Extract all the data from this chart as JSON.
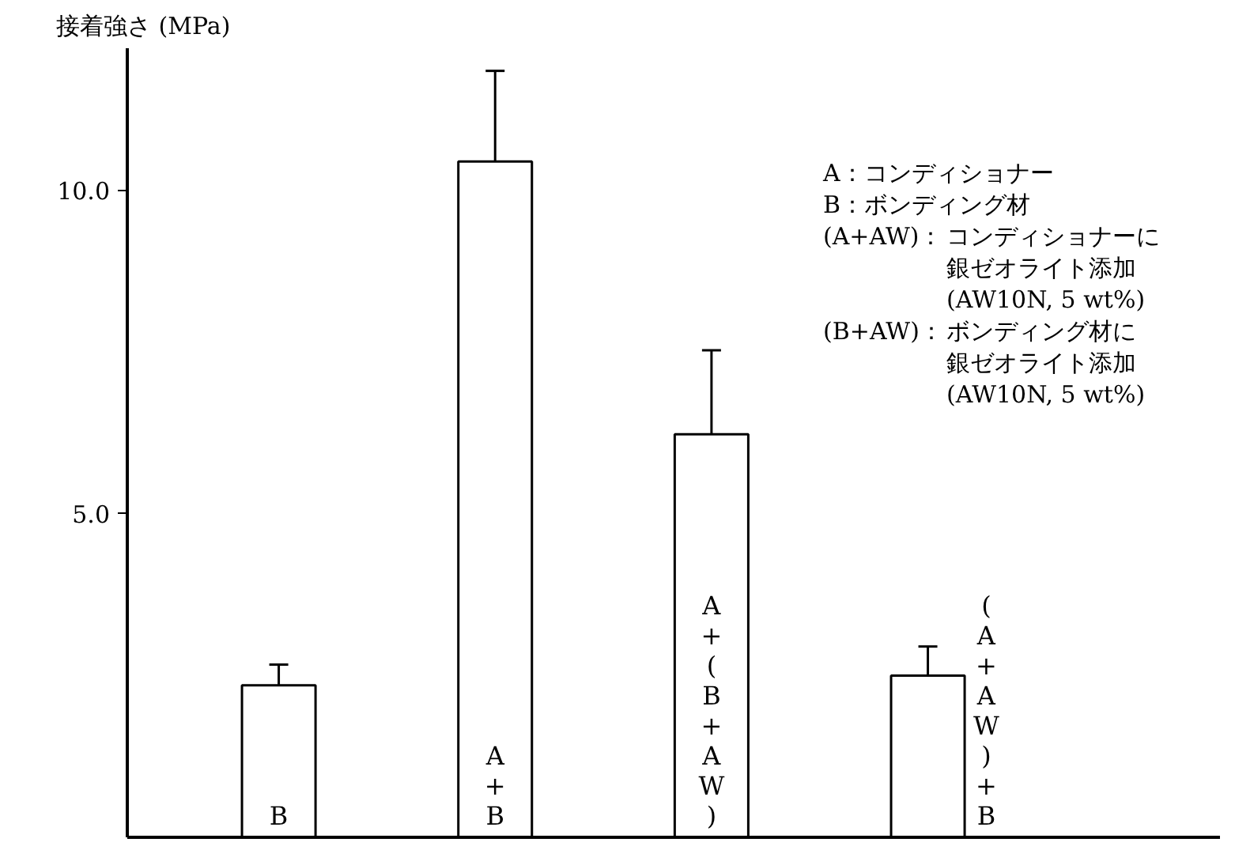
{
  "chart_data": {
    "type": "bar",
    "ylabel": "接着強さ (MPa)",
    "categories": [
      "B",
      "A+B",
      "A+(B+AW)",
      "(A+AW)+B"
    ],
    "values": [
      2.35,
      10.45,
      6.23,
      2.5
    ],
    "errors": [
      0.32,
      1.4,
      1.3,
      0.45
    ],
    "color": "#ffffff",
    "ylim": [
      0,
      12.2
    ],
    "yticks": [
      {
        "value": 5,
        "label": "5.0"
      },
      {
        "value": 10,
        "label": "10.0"
      }
    ],
    "grid": false,
    "annotations": [
      "A：コンディショナー",
      "B：ボンディング材",
      "(A+AW)：",
      "コンディショナーに",
      "銀ゼオライト添加",
      "(AW10N, 5 wt%)",
      "(B+AW)：",
      "ボンディング材に",
      "銀ゼオライト添加",
      "(AW10N, 5 wt%)"
    ]
  }
}
